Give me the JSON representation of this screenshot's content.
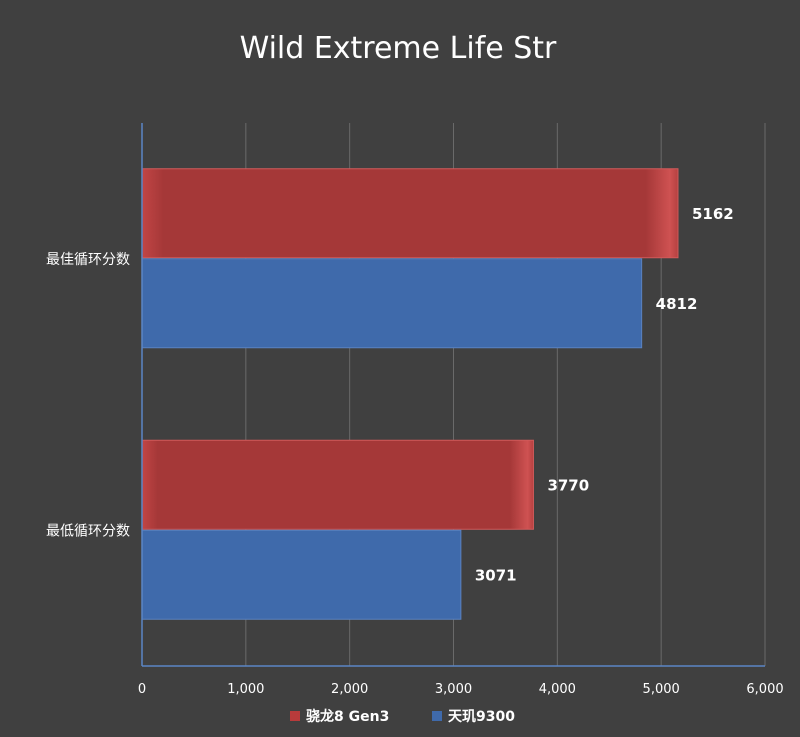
{
  "chart_data": {
    "type": "bar",
    "orientation": "horizontal",
    "title": "Wild Extreme Life Str",
    "xlabel": "",
    "ylabel": "",
    "categories": [
      "最佳循环分数",
      "最低循环分数"
    ],
    "series": [
      {
        "name": "骁龙8 Gen3",
        "values": [
          5162,
          3770
        ],
        "color": "#b83b3b"
      },
      {
        "name": "天玑9300",
        "values": [
          4812,
          3071
        ],
        "color": "#3f6aab"
      }
    ],
    "xlim": [
      0,
      6000
    ],
    "xticks": [
      0,
      1000,
      2000,
      3000,
      4000,
      5000,
      6000
    ],
    "xtick_labels": [
      "0",
      "1,000",
      "2,000",
      "3,000",
      "4,000",
      "5,000",
      "6,000"
    ],
    "grid": true,
    "legend_position": "bottom",
    "data_labels": true
  },
  "colors": {
    "background": "#404040",
    "gridline": "#6a6a6a",
    "axis": "#5b86c6",
    "text": "#ffffff"
  }
}
